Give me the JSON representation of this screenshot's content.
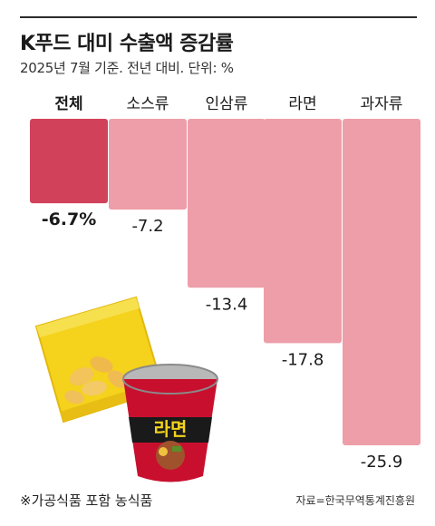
{
  "title": "K푸드 대미 수출액 증감률",
  "subtitle": "2025년 7월 기준. 전년 대비. 단위: %",
  "footnote": "※가공식품 포함 농식품",
  "source": "자료=한국무역통계진흥원",
  "colors": {
    "highlight": "#d2415a",
    "bar": "#ee9ea9",
    "text": "#1a1a1a"
  },
  "illustration": {
    "ramen_cup_label": "라면",
    "icons": [
      "snack-bag-icon",
      "ramen-cup-icon"
    ]
  },
  "chart_data": {
    "type": "bar",
    "orientation": "vertical",
    "categories": [
      "전체",
      "소스류",
      "인삼류",
      "라면",
      "과자류"
    ],
    "values": [
      -6.7,
      -7.2,
      -13.4,
      -17.8,
      -25.9
    ],
    "value_labels": [
      "-6.7%",
      "-7.2",
      "-13.4",
      "-17.8",
      "-25.9"
    ],
    "highlight_index": 0,
    "ylim": [
      -25.9,
      0
    ],
    "grid": false,
    "legend": "none"
  }
}
